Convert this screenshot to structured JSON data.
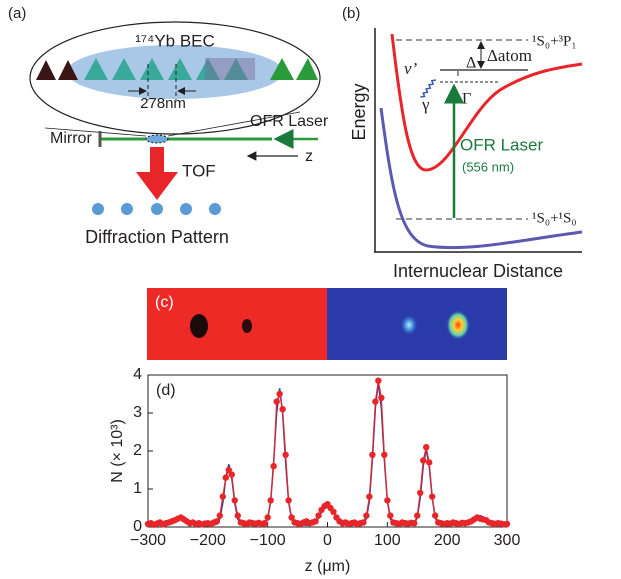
{
  "panel_a": {
    "label": "(a)",
    "bec": "¹⁷⁴Yb BEC",
    "spacing": "278nm",
    "mirror": "Mirror",
    "laser": "OFR Laser",
    "axis": "z",
    "tof": "TOF",
    "pattern": "Diffraction Pattern"
  },
  "panel_b": {
    "label": "(b)",
    "y_axis": "Energy",
    "x_axis": "Internuclear Distance",
    "upper_level": "¹S₀+³P₁",
    "lower_level": "¹S₀+¹S₀",
    "detuning_atom": "Δatom",
    "detuning": "Δ",
    "width": "Γ",
    "vibrational": "v’",
    "loss": "γ",
    "laser": "OFR Laser",
    "wavelength": "(556 nm)"
  },
  "panel_c": {
    "label": "(c)"
  },
  "chart_data": {
    "type": "line",
    "label": "(d)",
    "xlabel": "z (μm)",
    "ylabel": "N (× 10³)",
    "x": [
      -300,
      -295,
      -290,
      -285,
      -280,
      -275,
      -270,
      -265,
      -260,
      -255,
      -250,
      -245,
      -240,
      -235,
      -230,
      -225,
      -220,
      -215,
      -210,
      -205,
      -200,
      -195,
      -190,
      -185,
      -180,
      -175,
      -170,
      -165,
      -160,
      -155,
      -150,
      -145,
      -140,
      -135,
      -130,
      -125,
      -120,
      -115,
      -110,
      -105,
      -100,
      -95,
      -90,
      -85,
      -80,
      -75,
      -70,
      -65,
      -60,
      -55,
      -50,
      -45,
      -40,
      -35,
      -30,
      -25,
      -20,
      -15,
      -10,
      -5,
      0,
      5,
      10,
      15,
      20,
      25,
      30,
      35,
      40,
      45,
      50,
      55,
      60,
      65,
      70,
      75,
      80,
      85,
      90,
      95,
      100,
      105,
      110,
      115,
      120,
      125,
      130,
      135,
      140,
      145,
      150,
      155,
      160,
      165,
      170,
      175,
      180,
      185,
      190,
      195,
      200,
      205,
      210,
      215,
      220,
      225,
      230,
      235,
      240,
      245,
      250,
      255,
      260,
      265,
      270,
      275,
      280,
      285,
      290,
      295,
      300
    ],
    "series": [
      {
        "style": "line",
        "color": "#2f3f9e",
        "values": [
          0.05,
          0.05,
          0.05,
          0.05,
          0.05,
          0.05,
          0.06,
          0.085,
          0.13,
          0.2,
          0.27,
          0.3,
          0.27,
          0.2,
          0.13,
          0.085,
          0.06,
          0.05,
          0.05,
          0.05,
          0.05,
          0.05,
          0.05,
          0.08,
          0.21,
          0.63,
          1.29,
          1.65,
          1.29,
          0.63,
          0.21,
          0.08,
          0.05,
          0.05,
          0.05,
          0.05,
          0.05,
          0.05,
          0.05,
          0.08,
          0.21,
          0.66,
          1.71,
          3.0,
          3.65,
          3.0,
          1.71,
          0.66,
          0.21,
          0.08,
          0.05,
          0.05,
          0.05,
          0.05,
          0.05,
          0.07,
          0.13,
          0.23,
          0.39,
          0.53,
          0.6,
          0.53,
          0.39,
          0.23,
          0.13,
          0.07,
          0.05,
          0.05,
          0.05,
          0.05,
          0.05,
          0.05,
          0.08,
          0.22,
          0.69,
          1.77,
          3.13,
          3.8,
          3.13,
          1.77,
          0.69,
          0.22,
          0.08,
          0.05,
          0.05,
          0.05,
          0.05,
          0.05,
          0.05,
          0.08,
          0.25,
          0.77,
          1.6,
          2.05,
          1.6,
          0.77,
          0.25,
          0.08,
          0.05,
          0.05,
          0.05,
          0.05,
          0.05,
          0.05,
          0.05,
          0.05,
          0.06,
          0.085,
          0.13,
          0.2,
          0.27,
          0.3,
          0.27,
          0.2,
          0.13,
          0.085,
          0.06,
          0.05,
          0.05,
          0.05,
          0.05
        ]
      },
      {
        "style": "markers",
        "color": "#e8262a",
        "values": [
          0.08,
          0.1,
          0.06,
          0.09,
          0.12,
          0.07,
          0.1,
          0.12,
          0.15,
          0.18,
          0.22,
          0.25,
          0.2,
          0.15,
          0.1,
          0.12,
          0.08,
          0.1,
          0.07,
          0.09,
          0.1,
          0.08,
          0.12,
          0.15,
          0.3,
          0.8,
          1.3,
          1.5,
          1.38,
          0.7,
          0.3,
          0.12,
          0.1,
          0.08,
          0.12,
          0.1,
          0.09,
          0.11,
          0.08,
          0.1,
          0.25,
          0.7,
          1.6,
          3.3,
          3.5,
          3.1,
          1.9,
          0.7,
          0.25,
          0.12,
          0.1,
          0.08,
          0.12,
          0.15,
          0.1,
          0.12,
          0.15,
          0.3,
          0.45,
          0.55,
          0.6,
          0.5,
          0.4,
          0.25,
          0.15,
          0.1,
          0.12,
          0.08,
          0.1,
          0.12,
          0.08,
          0.1,
          0.12,
          0.3,
          0.8,
          1.9,
          3.3,
          3.85,
          3.4,
          1.9,
          0.7,
          0.3,
          0.12,
          0.1,
          0.08,
          0.12,
          0.1,
          0.09,
          0.11,
          0.1,
          0.3,
          0.9,
          1.75,
          2.1,
          1.7,
          0.8,
          0.3,
          0.12,
          0.1,
          0.08,
          0.1,
          0.09,
          0.12,
          0.1,
          0.08,
          0.11,
          0.1,
          0.12,
          0.15,
          0.2,
          0.25,
          0.22,
          0.2,
          0.18,
          0.12,
          0.1,
          0.08,
          0.1,
          0.09,
          0.07,
          0.08
        ]
      }
    ],
    "xlim": [
      -300,
      300
    ],
    "xticks": [
      {
        "value": -300,
        "label": "−300"
      },
      {
        "value": -200,
        "label": "−200"
      },
      {
        "value": -100,
        "label": "−100"
      },
      0,
      100,
      200,
      300
    ],
    "ylim": [
      0,
      4
    ],
    "yticks": [
      0,
      1,
      2,
      3,
      4
    ]
  }
}
